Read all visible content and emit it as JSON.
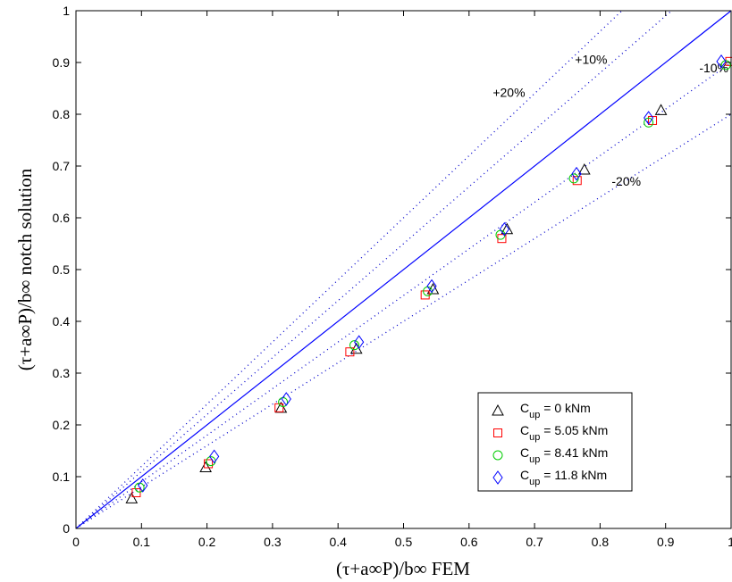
{
  "chart_data": {
    "type": "scatter",
    "xlabel": "(τ+a∞P)/b∞  FEM",
    "ylabel": "(τ+a∞P)/b∞  notch solution",
    "xlim": [
      0,
      1
    ],
    "ylim": [
      0,
      1
    ],
    "x_ticks": [
      "0",
      "0.1",
      "0.2",
      "0.3",
      "0.4",
      "0.5",
      "0.6",
      "0.7",
      "0.8",
      "0.9",
      "1"
    ],
    "y_ticks": [
      "0",
      "0.1",
      "0.2",
      "0.3",
      "0.4",
      "0.5",
      "0.6",
      "0.7",
      "0.8",
      "0.9",
      "1"
    ],
    "grid": false,
    "legend_position": "bottom-right",
    "reference_lines": [
      {
        "label": "",
        "factor": 1.0,
        "style": "solid",
        "color": "#0000ff"
      },
      {
        "label": "+20%",
        "factor": 1.2,
        "style": "dotted",
        "color": "#0000cc"
      },
      {
        "label": "+10%",
        "factor": 1.1,
        "style": "dotted",
        "color": "#0000cc"
      },
      {
        "label": "-10%",
        "factor": 0.9,
        "style": "dotted",
        "color": "#0000cc"
      },
      {
        "label": "-20%",
        "factor": 0.8,
        "style": "dotted",
        "color": "#0000cc"
      }
    ],
    "series": [
      {
        "name": "C_up = 0 kNm",
        "legend": {
          "base": "C",
          "sub": "up",
          "rest": " = 0 kNm"
        },
        "marker": "triangle",
        "color": "#000000",
        "points": [
          [
            0.085,
            0.058
          ],
          [
            0.198,
            0.118
          ],
          [
            0.313,
            0.233
          ],
          [
            0.428,
            0.347
          ],
          [
            0.545,
            0.462
          ],
          [
            0.658,
            0.578
          ],
          [
            0.776,
            0.693
          ],
          [
            0.893,
            0.808
          ]
        ]
      },
      {
        "name": "C_up = 5.05 kNm",
        "legend": {
          "base": "C",
          "sub": "up",
          "rest": " = 5.05 kNm"
        },
        "marker": "square",
        "color": "#ff0000",
        "points": [
          [
            0.092,
            0.069
          ],
          [
            0.202,
            0.125
          ],
          [
            0.31,
            0.233
          ],
          [
            0.418,
            0.341
          ],
          [
            0.533,
            0.451
          ],
          [
            0.65,
            0.56
          ],
          [
            0.765,
            0.672
          ],
          [
            0.88,
            0.788
          ],
          [
            0.998,
            0.902
          ]
        ]
      },
      {
        "name": "C_up = 8.41 kNm",
        "legend": {
          "base": "C",
          "sub": "up",
          "rest": " = 8.41 kNm"
        },
        "marker": "circle",
        "color": "#00cc00",
        "points": [
          [
            0.097,
            0.079
          ],
          [
            0.206,
            0.13
          ],
          [
            0.316,
            0.244
          ],
          [
            0.425,
            0.354
          ],
          [
            0.537,
            0.458
          ],
          [
            0.648,
            0.567
          ],
          [
            0.76,
            0.676
          ],
          [
            0.874,
            0.784
          ],
          [
            0.992,
            0.895
          ]
        ]
      },
      {
        "name": "C_up = 11.8 kNm",
        "legend": {
          "base": "C",
          "sub": "up",
          "rest": " = 11.8 kNm"
        },
        "marker": "diamond",
        "color": "#0000ff",
        "points": [
          [
            0.102,
            0.083
          ],
          [
            0.211,
            0.139
          ],
          [
            0.321,
            0.25
          ],
          [
            0.432,
            0.36
          ],
          [
            0.543,
            0.468
          ],
          [
            0.654,
            0.578
          ],
          [
            0.764,
            0.685
          ],
          [
            0.874,
            0.793
          ],
          [
            0.985,
            0.902
          ]
        ]
      }
    ]
  }
}
